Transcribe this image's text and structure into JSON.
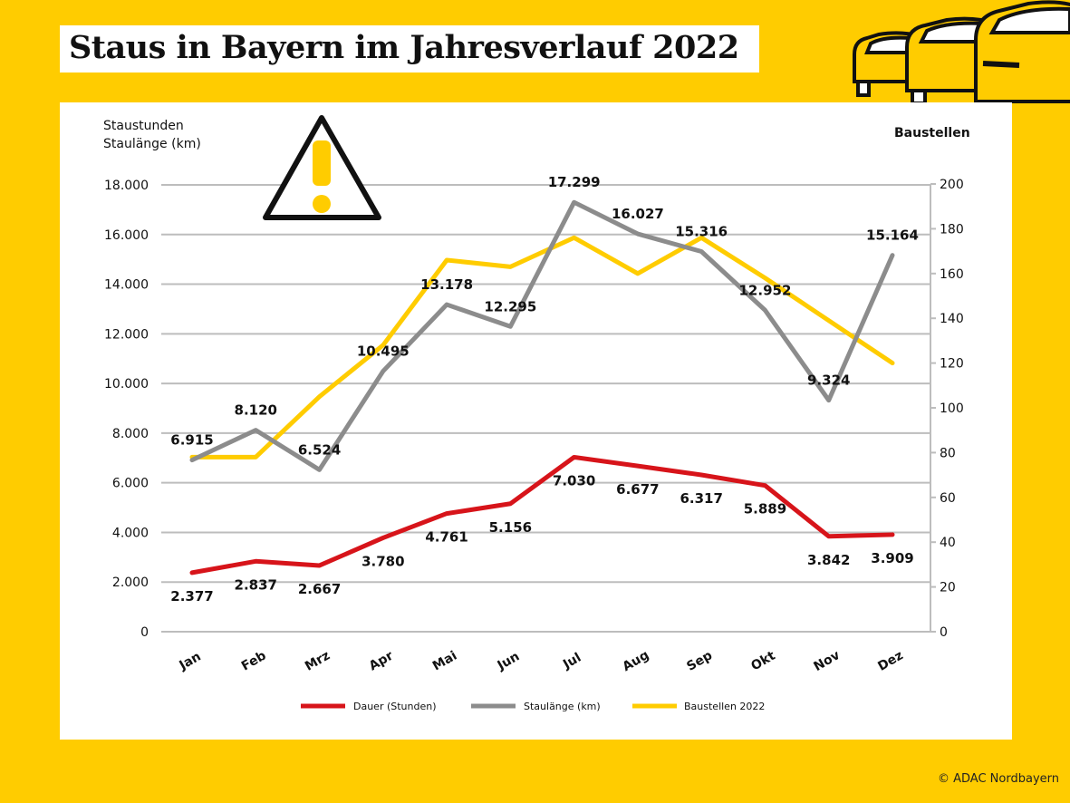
{
  "title": "Staus in Bayern im Jahresverlauf 2022",
  "footer": "© ADAC Nordbayern",
  "icons": [
    "warning-triangle-icon",
    "cars-icon"
  ],
  "chart_data": {
    "type": "line",
    "title": "Staus in Bayern im Jahresverlauf 2022",
    "ylabel_left": [
      "Staustunden",
      "Staulänge (km)"
    ],
    "ylabel_right": "Baustellen",
    "categories": [
      "Jan",
      "Feb",
      "Mrz",
      "Apr",
      "Mai",
      "Jun",
      "Jul",
      "Aug",
      "Sep",
      "Okt",
      "Nov",
      "Dez"
    ],
    "ylim_left": [
      0,
      18000
    ],
    "ylim_right": [
      0,
      200
    ],
    "yticks_left": [
      "0",
      "2.000",
      "4.000",
      "6.000",
      "8.000",
      "10.000",
      "12.000",
      "14.000",
      "16.000",
      "18.000"
    ],
    "yticks_left_values": [
      0,
      2000,
      4000,
      6000,
      8000,
      10000,
      12000,
      14000,
      16000,
      18000
    ],
    "yticks_right": [
      "0",
      "20",
      "40",
      "60",
      "80",
      "100",
      "120",
      "140",
      "160",
      "180",
      "200"
    ],
    "yticks_right_values": [
      0,
      20,
      40,
      60,
      80,
      100,
      120,
      140,
      160,
      180,
      200
    ],
    "grid": true,
    "legend_position": "bottom",
    "series": [
      {
        "name": "Dauer (Stunden)",
        "axis": "left",
        "color": "#D7141A",
        "values": [
          2377,
          2837,
          2667,
          3780,
          4761,
          5156,
          7030,
          6677,
          6317,
          5889,
          3842,
          3909
        ],
        "labels": [
          "2.377",
          "2.837",
          "2.667",
          "3.780",
          "4.761",
          "5.156",
          "7.030",
          "6.677",
          "6.317",
          "5.889",
          "3.842",
          "3.909"
        ]
      },
      {
        "name": "Staulänge (km)",
        "axis": "left",
        "color": "#8C8C8C",
        "values": [
          6915,
          8120,
          6524,
          10495,
          13178,
          12295,
          17299,
          16027,
          15316,
          12952,
          9324,
          15164
        ],
        "labels": [
          "6.915",
          "8.120",
          "6.524",
          "10.495",
          "13.178",
          "12.295",
          "17.299",
          "16.027",
          "15.316",
          "12.952",
          "9.324",
          "15.164"
        ]
      },
      {
        "name": "Baustellen 2022",
        "axis": "right",
        "color": "#FFCC00",
        "values": [
          78,
          78,
          105,
          128,
          166,
          163,
          176,
          160,
          176,
          158,
          139,
          120
        ]
      }
    ]
  }
}
